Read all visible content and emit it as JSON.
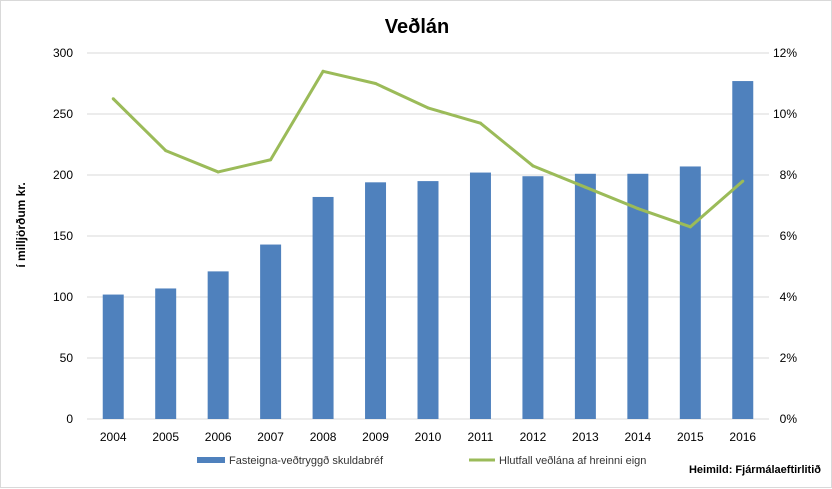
{
  "chart_data": {
    "type": "bar",
    "title": "Veðlán",
    "ylabel": "í milljörðum kr.",
    "categories": [
      "2004",
      "2005",
      "2006",
      "2007",
      "2008",
      "2009",
      "2010",
      "2011",
      "2012",
      "2013",
      "2014",
      "2015",
      "2016"
    ],
    "ylim": [
      0,
      300
    ],
    "yticks": [
      0,
      50,
      100,
      150,
      200,
      250,
      300
    ],
    "y2lim": [
      0,
      12
    ],
    "y2ticks": [
      0,
      2,
      4,
      6,
      8,
      10,
      12
    ],
    "y2tick_suffix": "%",
    "grid": true,
    "legend_position": "bottom",
    "series": [
      {
        "name": "Fasteigna-veðtryggð skuldabréf",
        "type": "bar",
        "axis": "left",
        "color": "#4f81bd",
        "values": [
          102,
          107,
          121,
          143,
          182,
          194,
          195,
          202,
          199,
          201,
          201,
          207,
          277
        ]
      },
      {
        "name": "Hlutfall veðlána af hreinni eign",
        "type": "line",
        "axis": "right",
        "color": "#9bbb59",
        "values": [
          10.5,
          8.8,
          8.1,
          8.5,
          11.4,
          11.0,
          10.2,
          9.7,
          8.3,
          7.6,
          6.9,
          6.3,
          7.8
        ]
      }
    ],
    "source": "Heimild: Fjármálaeftirlitið"
  }
}
